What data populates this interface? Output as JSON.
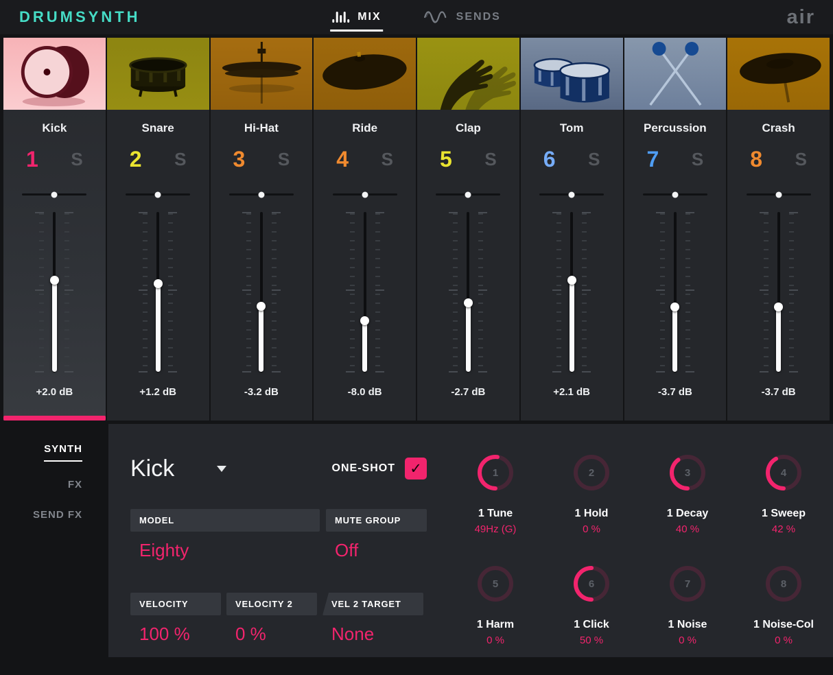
{
  "header": {
    "logo": "DRUMSYNTH",
    "tabs": [
      {
        "label": "MIX",
        "icon": "eq-bars-icon",
        "active": true
      },
      {
        "label": "SENDS",
        "icon": "wave-icon",
        "active": false
      }
    ],
    "brand": "air"
  },
  "mixer": {
    "solo_label": "S",
    "channels": [
      {
        "name": "Kick",
        "number": "1",
        "number_color": "#f2246d",
        "db": "+2.0 dB",
        "fader_pct": 42.5,
        "pan_pct": 50,
        "selected": true,
        "art": "kick",
        "art_bg_top": "#f7b3b7",
        "art_bg_bottom": "#fbcdd0"
      },
      {
        "name": "Snare",
        "number": "2",
        "number_color": "#eae430",
        "db": "+1.2 dB",
        "fader_pct": 44.5,
        "pan_pct": 50,
        "selected": false,
        "art": "snare",
        "art_bg_top": "#8d8511",
        "art_bg_bottom": "#978e13"
      },
      {
        "name": "Hi-Hat",
        "number": "3",
        "number_color": "#f08a2f",
        "db": "-3.2 dB",
        "fader_pct": 58.5,
        "pan_pct": 50,
        "selected": false,
        "art": "hihat",
        "art_bg_top": "#a66d10",
        "art_bg_bottom": "#94600c"
      },
      {
        "name": "Ride",
        "number": "4",
        "number_color": "#f08a2f",
        "db": "-8.0 dB",
        "fader_pct": 67.5,
        "pan_pct": 50,
        "selected": false,
        "art": "ride",
        "art_bg_top": "#9e690d",
        "art_bg_bottom": "#8f5e0a"
      },
      {
        "name": "Clap",
        "number": "5",
        "number_color": "#eae430",
        "db": "-2.7 dB",
        "fader_pct": 56.5,
        "pan_pct": 50,
        "selected": false,
        "art": "clap",
        "art_bg_top": "#9a9312",
        "art_bg_bottom": "#8d8710"
      },
      {
        "name": "Tom",
        "number": "6",
        "number_color": "#76acf7",
        "db": "+2.1 dB",
        "fader_pct": 42.5,
        "pan_pct": 50,
        "selected": false,
        "art": "tom",
        "art_bg_top": "#7b8ba2",
        "art_bg_bottom": "#596984"
      },
      {
        "name": "Percussion",
        "number": "7",
        "number_color": "#4f9df3",
        "db": "-3.7 dB",
        "fader_pct": 59.0,
        "pan_pct": 50,
        "selected": false,
        "art": "perc",
        "art_bg_top": "#8797ac",
        "art_bg_bottom": "#6d7f9b"
      },
      {
        "name": "Crash",
        "number": "8",
        "number_color": "#f08a2f",
        "db": "-3.7 dB",
        "fader_pct": 59.0,
        "pan_pct": 50,
        "selected": false,
        "art": "crash",
        "art_bg_top": "#a87307",
        "art_bg_bottom": "#9a6806"
      }
    ]
  },
  "sidebar": {
    "items": [
      {
        "label": "SYNTH",
        "active": true
      },
      {
        "label": "FX",
        "active": false
      },
      {
        "label": "SEND FX",
        "active": false
      }
    ]
  },
  "panel": {
    "title": "Kick",
    "one_shot": {
      "label": "ONE-SHOT",
      "checked": true,
      "check_glyph": "✓"
    },
    "fields_row1": [
      {
        "label": "MODEL",
        "value": "Eighty"
      },
      {
        "label": "MUTE GROUP",
        "value": "Off"
      }
    ],
    "fields_row2": [
      {
        "label": "VELOCITY",
        "value": "100 %"
      },
      {
        "label": "VELOCITY 2",
        "value": "0 %"
      },
      {
        "label": "VEL 2 TARGET",
        "value": "None"
      }
    ],
    "knobs": [
      {
        "number": "1",
        "label": "1 Tune",
        "value": "49Hz (G)",
        "pct": 52
      },
      {
        "number": "2",
        "label": "1 Hold",
        "value": "0 %",
        "pct": 0
      },
      {
        "number": "3",
        "label": "1 Decay",
        "value": "40 %",
        "pct": 40
      },
      {
        "number": "4",
        "label": "1 Sweep",
        "value": "42 %",
        "pct": 42
      },
      {
        "number": "5",
        "label": "1 Harm",
        "value": "0 %",
        "pct": 0
      },
      {
        "number": "6",
        "label": "1 Click",
        "value": "50 %",
        "pct": 50
      },
      {
        "number": "7",
        "label": "1 Noise",
        "value": "0 %",
        "pct": 0
      },
      {
        "number": "8",
        "label": "1 Noise-Col",
        "value": "0 %",
        "pct": 0
      }
    ]
  },
  "colors": {
    "accent": "#f2246d",
    "logo_teal": "#46dcc6"
  }
}
